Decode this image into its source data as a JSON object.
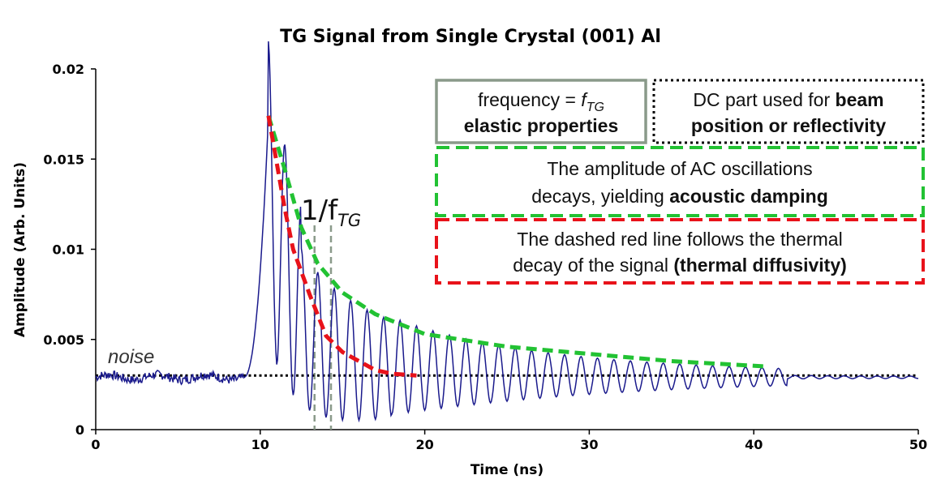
{
  "chart_data": {
    "type": "line",
    "title": "TG Signal from Single Crystal (001) Al",
    "xlabel": "Time (ns)",
    "ylabel": "Amplitude (Arb. Units)",
    "xlim": [
      0,
      50
    ],
    "ylim": [
      0,
      0.02
    ],
    "x_ticks": [
      "0",
      "10",
      "20",
      "30",
      "40",
      "50"
    ],
    "y_ticks": [
      "0",
      "0.005",
      "0.01",
      "0.015",
      "0.02"
    ],
    "grid": false,
    "series": [
      {
        "color": "#1a1a8c",
        "signal": {
          "noise_level": 0.0029,
          "onset_ns": 9.0,
          "peak_time_ns": 10.5,
          "peak_amplitude": 0.0174,
          "oscillation_period_ns": 1.0,
          "oscillations_visible_until_ns": 42
        }
      }
    ],
    "overlays": {
      "noise_line": {
        "y": 0.003,
        "x_range": [
          0,
          50
        ],
        "style": "dotted",
        "color": "#000000",
        "label": "noise"
      },
      "thermal_decay": {
        "style": "dashed",
        "color": "#e8121a",
        "points": [
          [
            10.5,
            0.0174
          ],
          [
            11.0,
            0.0148
          ],
          [
            11.5,
            0.0122
          ],
          [
            12.0,
            0.01
          ],
          [
            13.0,
            0.0075
          ],
          [
            14.0,
            0.0052
          ],
          [
            15.0,
            0.0043
          ],
          [
            16.0,
            0.0038
          ],
          [
            17.0,
            0.0033
          ],
          [
            18.0,
            0.0031
          ],
          [
            19.5,
            0.003
          ]
        ]
      },
      "acoustic_envelope": {
        "style": "dashed",
        "color": "#22c233",
        "points": [
          [
            10.5,
            0.0174
          ],
          [
            11.5,
            0.0144
          ],
          [
            12.5,
            0.0112
          ],
          [
            13.5,
            0.0092
          ],
          [
            15.0,
            0.0076
          ],
          [
            17.0,
            0.0064
          ],
          [
            20.0,
            0.0053
          ],
          [
            25.0,
            0.0046
          ],
          [
            30.0,
            0.0042
          ],
          [
            35.0,
            0.0038
          ],
          [
            40.8,
            0.0035
          ]
        ]
      },
      "period_markers": {
        "x": [
          13.3,
          14.3
        ],
        "style": "dashed",
        "color": "#8a9a8a",
        "label": "1/f",
        "label_sub": "TG"
      }
    },
    "annotations": {
      "freq_box": {
        "border": "solid",
        "border_color": "#8a9a8a",
        "line1_prefix": "frequency = ",
        "line1_f": "f",
        "line1_sub": "TG",
        "line2": "elastic properties"
      },
      "dc_box": {
        "border": "dotted",
        "border_color": "#000000",
        "line1_plain": "DC part used for ",
        "line1_bold": "beam",
        "line2": "position or reflectivity"
      },
      "ac_box": {
        "border": "dashed",
        "border_color": "#22c233",
        "line1": "The amplitude of AC oscillations",
        "line2_plain": "decays, yielding ",
        "line2_bold": "acoustic damping"
      },
      "thermal_box": {
        "border": "dashed",
        "border_color": "#e8121a",
        "line1": "The dashed red line follows the thermal",
        "line2_plain": "decay of the signal ",
        "line2_bold": "(thermal diffusivity)"
      }
    }
  }
}
